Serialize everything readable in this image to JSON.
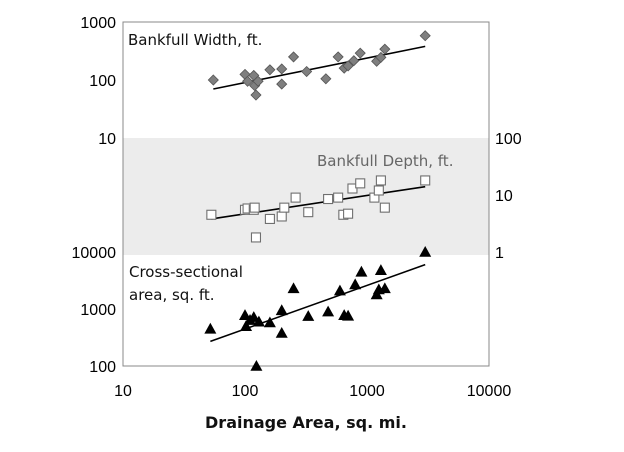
{
  "chart_data": {
    "type": "scatter",
    "xscale": "log",
    "xlim": [
      10,
      10000
    ],
    "xlabel": "Drainage Area, sq. mi.",
    "x_tick_labels": [
      "10",
      "100",
      "1000",
      "10000"
    ],
    "left_axis_upper": {
      "ylim": [
        10,
        1000
      ],
      "tick_labels": [
        "10",
        "100",
        "1000"
      ]
    },
    "left_axis_lower": {
      "ylim": [
        100,
        10000
      ],
      "tick_labels": [
        "100",
        "1000",
        "10000"
      ]
    },
    "right_axis": {
      "ylim": [
        1,
        100
      ],
      "tick_labels": [
        "1",
        "10",
        "100"
      ]
    },
    "series": [
      {
        "name": "Bankfull Width, ft.",
        "marker": "diamond",
        "color": "#7f7f7f",
        "points": [
          [
            55,
            100
          ],
          [
            100,
            125
          ],
          [
            105,
            95
          ],
          [
            118,
            120
          ],
          [
            120,
            80
          ],
          [
            123,
            55
          ],
          [
            128,
            95
          ],
          [
            160,
            150
          ],
          [
            200,
            155
          ],
          [
            200,
            85
          ],
          [
            250,
            250
          ],
          [
            320,
            140
          ],
          [
            460,
            105
          ],
          [
            580,
            250
          ],
          [
            650,
            160
          ],
          [
            700,
            175
          ],
          [
            780,
            215
          ],
          [
            880,
            290
          ],
          [
            1200,
            210
          ],
          [
            1300,
            245
          ],
          [
            1400,
            340
          ],
          [
            3000,
            580
          ]
        ],
        "trend": [
          [
            55,
            70
          ],
          [
            3000,
            380
          ]
        ]
      },
      {
        "name": "Bankfull Depth, ft.",
        "marker": "square-open",
        "color": "#6f6f6f",
        "points": [
          [
            53,
            4.5
          ],
          [
            100,
            5.5
          ],
          [
            105,
            5.8
          ],
          [
            118,
            5.5
          ],
          [
            120,
            6
          ],
          [
            123,
            1.8
          ],
          [
            160,
            3.8
          ],
          [
            200,
            4.2
          ],
          [
            210,
            6
          ],
          [
            260,
            9
          ],
          [
            330,
            5
          ],
          [
            480,
            8.5
          ],
          [
            580,
            9
          ],
          [
            640,
            4.5
          ],
          [
            700,
            4.7
          ],
          [
            760,
            13
          ],
          [
            880,
            16
          ],
          [
            1150,
            9
          ],
          [
            1250,
            12
          ],
          [
            1300,
            18
          ],
          [
            1400,
            6
          ],
          [
            3000,
            18
          ]
        ],
        "trend": [
          [
            53,
            3.8
          ],
          [
            3000,
            14
          ]
        ]
      },
      {
        "name": "Cross-sectional area, sq. ft.",
        "marker": "triangle",
        "color": "#000000",
        "points": [
          [
            52,
            450
          ],
          [
            100,
            780
          ],
          [
            102,
            500
          ],
          [
            110,
            640
          ],
          [
            118,
            720
          ],
          [
            124,
            100
          ],
          [
            130,
            600
          ],
          [
            160,
            580
          ],
          [
            200,
            380
          ],
          [
            200,
            950
          ],
          [
            250,
            2300
          ],
          [
            330,
            750
          ],
          [
            480,
            900
          ],
          [
            600,
            2100
          ],
          [
            650,
            780
          ],
          [
            700,
            760
          ],
          [
            800,
            2700
          ],
          [
            900,
            4500
          ],
          [
            1200,
            1800
          ],
          [
            1250,
            2200
          ],
          [
            1300,
            4800
          ],
          [
            1400,
            2300
          ],
          [
            3000,
            10000
          ]
        ],
        "trend": [
          [
            52,
            270
          ],
          [
            3000,
            6000
          ]
        ]
      }
    ],
    "labels": {
      "width": "Bankfull Width, ft.",
      "depth": "Bankfull Depth, ft.",
      "area_line1": "Cross-sectional",
      "area_line2": "area, sq. ft."
    }
  }
}
